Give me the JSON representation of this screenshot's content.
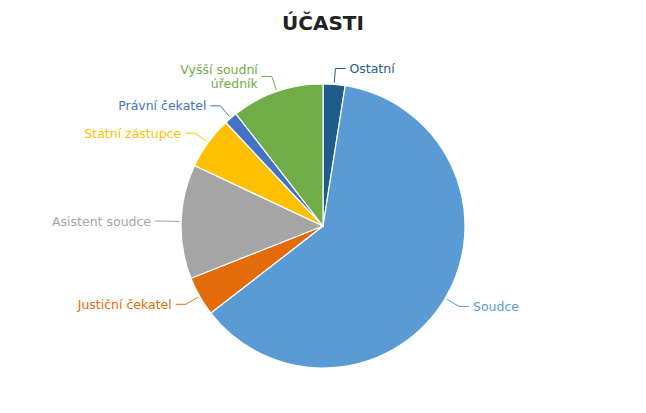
{
  "chart_data": {
    "type": "pie",
    "title": "ÚČASTI",
    "categories": [
      "Ostatní",
      "Soudce",
      "Justiční čekatel",
      "Asistent soudce",
      "Státní zástupce",
      "Právní čekatel",
      "Vyšší soudní\núředník"
    ],
    "values": [
      2.5,
      62.0,
      4.5,
      13.0,
      6.0,
      1.5,
      10.5
    ],
    "colors": [
      "#1F5C8B",
      "#5B9BD5",
      "#E36C09",
      "#A5A5A5",
      "#FFC000",
      "#4472C4",
      "#70AD47"
    ]
  }
}
